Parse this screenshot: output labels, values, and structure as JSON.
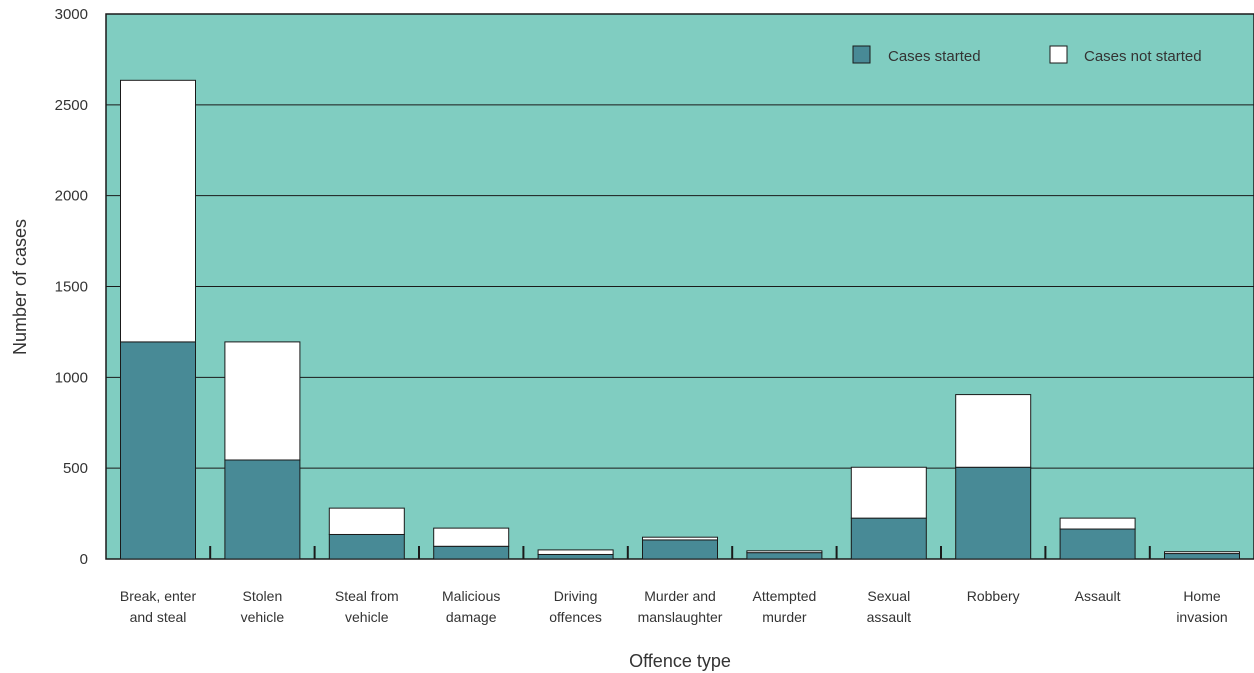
{
  "chart_data": {
    "type": "bar",
    "stacked": true,
    "title": "",
    "xlabel": "Offence type",
    "ylabel": "Number of cases",
    "ylim": [
      0,
      3000
    ],
    "yticks": [
      0,
      500,
      1000,
      1500,
      2000,
      2500,
      3000
    ],
    "grid": true,
    "legend_position": "top-right",
    "categories": [
      [
        "Break, enter",
        "and steal"
      ],
      [
        "Stolen",
        "vehicle"
      ],
      [
        "Steal from",
        "vehicle"
      ],
      [
        "Malicious",
        "damage"
      ],
      [
        "Driving",
        "offences"
      ],
      [
        "Murder and",
        "manslaughter"
      ],
      [
        "Attempted",
        "murder"
      ],
      [
        "Sexual",
        "assault"
      ],
      [
        "Robbery"
      ],
      [
        "Assault"
      ],
      [
        "Home",
        "invasion"
      ]
    ],
    "series": [
      {
        "name": "Cases started",
        "color": "#488a96",
        "values": [
          1195,
          545,
          135,
          70,
          25,
          105,
          35,
          225,
          505,
          165,
          30
        ]
      },
      {
        "name": "Cases not started",
        "color": "#ffffff",
        "values": [
          1440,
          650,
          145,
          100,
          25,
          15,
          10,
          280,
          400,
          60,
          10
        ]
      }
    ],
    "colors": {
      "plot_background": "#80cdc1",
      "grid": "#1a1a1a",
      "bar_outline": "#1a1a1a"
    }
  }
}
